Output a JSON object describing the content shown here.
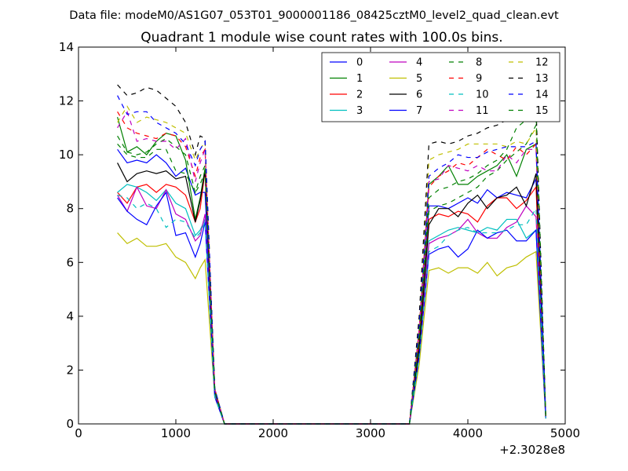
{
  "chart_data": {
    "type": "line",
    "suptitle": "Data file: modeM0/AS1G07_053T01_9000001186_08425cztM0_level2_quad_clean.evt",
    "title": "Quadrant 1 module wise count rates with 100.0s bins.",
    "xlabel": "",
    "ylabel": "",
    "x_offset_label": "+2.3028e8",
    "xlim": [
      0,
      5000
    ],
    "ylim": [
      0,
      14
    ],
    "xticks": [
      0,
      1000,
      2000,
      3000,
      4000,
      5000
    ],
    "yticks": [
      0,
      2,
      4,
      6,
      8,
      10,
      12,
      14
    ],
    "grid": false,
    "legend_position": "top-right",
    "legend_columns": 4,
    "x": [
      400,
      500,
      600,
      700,
      800,
      900,
      1000,
      1100,
      1200,
      1250,
      1300,
      1400,
      1500,
      1600,
      1700,
      1800,
      1900,
      2000,
      2100,
      2200,
      2300,
      2400,
      2500,
      2600,
      2700,
      2800,
      2900,
      3000,
      3100,
      3200,
      3300,
      3400,
      3500,
      3600,
      3700,
      3800,
      3900,
      4000,
      4100,
      4200,
      4300,
      4400,
      4500,
      4600,
      4700,
      4800
    ],
    "series": [
      {
        "name": "0",
        "color": "#0000ff",
        "dash": "solid",
        "values": [
          10.2,
          9.7,
          9.8,
          9.7,
          10.0,
          9.7,
          9.2,
          9.5,
          8.5,
          8.6,
          8.6,
          1.2,
          0,
          0,
          0,
          0,
          0,
          0,
          0,
          0,
          0,
          0,
          0,
          0,
          0,
          0,
          0,
          0,
          0,
          0,
          0,
          0,
          3.0,
          8.1,
          8.1,
          8.0,
          8.2,
          8.4,
          8.2,
          8.7,
          8.4,
          8.6,
          8.5,
          8.4,
          9.1,
          0.3
        ]
      },
      {
        "name": "1",
        "color": "#008000",
        "dash": "solid",
        "values": [
          11.4,
          10.1,
          10.3,
          10.0,
          10.5,
          10.8,
          10.7,
          9.8,
          7.6,
          8.4,
          9.5,
          1.3,
          0,
          0,
          0,
          0,
          0,
          0,
          0,
          0,
          0,
          0,
          0,
          0,
          0,
          0,
          0,
          0,
          0,
          0,
          0,
          0,
          3.5,
          8.9,
          9.2,
          9.6,
          8.9,
          8.9,
          9.2,
          9.4,
          9.6,
          10.0,
          9.2,
          10.2,
          10.4,
          0.3
        ]
      },
      {
        "name": "2",
        "color": "#ff0000",
        "dash": "solid",
        "values": [
          8.6,
          8.2,
          8.8,
          8.9,
          8.6,
          8.9,
          8.8,
          8.5,
          7.5,
          8.0,
          9.4,
          1.2,
          0,
          0,
          0,
          0,
          0,
          0,
          0,
          0,
          0,
          0,
          0,
          0,
          0,
          0,
          0,
          0,
          0,
          0,
          0,
          0,
          3.0,
          7.6,
          7.8,
          7.7,
          7.9,
          7.8,
          7.5,
          8.1,
          8.4,
          8.4,
          8.0,
          8.3,
          8.8,
          0.3
        ]
      },
      {
        "name": "3",
        "color": "#00bfbf",
        "dash": "solid",
        "values": [
          8.6,
          8.9,
          8.8,
          8.6,
          8.3,
          8.7,
          8.2,
          8.0,
          7.0,
          7.2,
          7.6,
          1.1,
          0,
          0,
          0,
          0,
          0,
          0,
          0,
          0,
          0,
          0,
          0,
          0,
          0,
          0,
          0,
          0,
          0,
          0,
          0,
          0,
          2.6,
          6.8,
          7.0,
          7.2,
          7.3,
          7.2,
          7.1,
          7.3,
          7.2,
          7.6,
          7.6,
          6.9,
          7.2,
          0.3
        ]
      },
      {
        "name": "4",
        "color": "#bf00bf",
        "dash": "solid",
        "values": [
          8.5,
          7.9,
          8.8,
          8.1,
          8.0,
          8.7,
          7.8,
          7.6,
          6.8,
          7.0,
          7.8,
          1.1,
          0,
          0,
          0,
          0,
          0,
          0,
          0,
          0,
          0,
          0,
          0,
          0,
          0,
          0,
          0,
          0,
          0,
          0,
          0,
          0,
          2.6,
          6.7,
          6.9,
          7.0,
          7.2,
          7.6,
          7.1,
          6.9,
          6.9,
          7.3,
          7.5,
          8.1,
          7.7,
          0.3
        ]
      },
      {
        "name": "5",
        "color": "#bfbf00",
        "dash": "solid",
        "values": [
          7.1,
          6.7,
          6.9,
          6.6,
          6.6,
          6.7,
          6.2,
          6.0,
          5.4,
          5.8,
          6.1,
          1.0,
          0,
          0,
          0,
          0,
          0,
          0,
          0,
          0,
          0,
          0,
          0,
          0,
          0,
          0,
          0,
          0,
          0,
          0,
          0,
          0,
          2.2,
          5.7,
          5.8,
          5.6,
          5.8,
          5.8,
          5.6,
          6.0,
          5.5,
          5.8,
          5.9,
          6.2,
          6.4,
          0.2
        ]
      },
      {
        "name": "6",
        "color": "#000000",
        "dash": "solid",
        "values": [
          9.7,
          9.0,
          9.3,
          9.4,
          9.3,
          9.4,
          9.1,
          9.2,
          7.5,
          8.3,
          9.4,
          1.2,
          0,
          0,
          0,
          0,
          0,
          0,
          0,
          0,
          0,
          0,
          0,
          0,
          0,
          0,
          0,
          0,
          0,
          0,
          0,
          0,
          2.8,
          7.4,
          8.0,
          8.0,
          7.7,
          8.2,
          8.5,
          8.0,
          8.4,
          8.5,
          8.8,
          8.1,
          9.3,
          0.3
        ]
      },
      {
        "name": "7",
        "color": "#0000ff",
        "dash": "solid",
        "values": [
          8.4,
          7.9,
          7.6,
          7.4,
          8.1,
          8.6,
          7.0,
          7.1,
          6.2,
          6.7,
          7.5,
          1.0,
          0,
          0,
          0,
          0,
          0,
          0,
          0,
          0,
          0,
          0,
          0,
          0,
          0,
          0,
          0,
          0,
          0,
          0,
          0,
          0,
          2.5,
          6.3,
          6.5,
          6.6,
          6.2,
          6.5,
          7.2,
          6.9,
          7.1,
          7.2,
          6.8,
          6.8,
          7.2,
          0.2
        ]
      },
      {
        "name": "8",
        "color": "#008000",
        "dash": "dashed",
        "values": [
          10.7,
          10.1,
          10.0,
          10.1,
          10.4,
          10.6,
          10.3,
          10.0,
          8.6,
          9.2,
          9.6,
          1.3,
          0,
          0,
          0,
          0,
          0,
          0,
          0,
          0,
          0,
          0,
          0,
          0,
          0,
          0,
          0,
          0,
          0,
          0,
          0,
          0,
          3.2,
          7.9,
          8.1,
          8.2,
          8.4,
          8.6,
          8.8,
          9.2,
          9.4,
          9.8,
          10.1,
          10.4,
          11.1,
          0.3
        ]
      },
      {
        "name": "9",
        "color": "#ff0000",
        "dash": "dashed",
        "values": [
          11.6,
          11.0,
          10.8,
          10.7,
          10.6,
          10.8,
          10.7,
          10.3,
          9.2,
          9.9,
          10.2,
          1.3,
          0,
          0,
          0,
          0,
          0,
          0,
          0,
          0,
          0,
          0,
          0,
          0,
          0,
          0,
          0,
          0,
          0,
          0,
          0,
          0,
          3.5,
          8.8,
          9.2,
          9.4,
          9.7,
          9.6,
          9.9,
          10.2,
          10.0,
          9.8,
          10.3,
          10.0,
          10.4,
          0.3
        ]
      },
      {
        "name": "10",
        "color": "#00bfbf",
        "dash": "dashed",
        "values": [
          8.5,
          8.4,
          8.0,
          8.2,
          8.0,
          7.3,
          7.6,
          7.5,
          6.9,
          7.1,
          7.5,
          1.0,
          0,
          0,
          0,
          0,
          0,
          0,
          0,
          0,
          0,
          0,
          0,
          0,
          0,
          0,
          0,
          0,
          0,
          0,
          0,
          0,
          2.5,
          6.4,
          6.6,
          7.0,
          7.2,
          7.3,
          7.1,
          7.1,
          7.1,
          7.2,
          7.4,
          7.4,
          8.0,
          0.2
        ]
      },
      {
        "name": "11",
        "color": "#bf00bf",
        "dash": "dashed",
        "values": [
          11.0,
          11.6,
          10.5,
          10.6,
          10.5,
          10.5,
          10.2,
          10.6,
          9.0,
          9.7,
          10.2,
          1.3,
          0,
          0,
          0,
          0,
          0,
          0,
          0,
          0,
          0,
          0,
          0,
          0,
          0,
          0,
          0,
          0,
          0,
          0,
          0,
          0,
          3.5,
          9.0,
          9.1,
          9.6,
          9.5,
          9.4,
          9.6,
          9.4,
          9.4,
          10.0,
          9.7,
          10.2,
          10.2,
          0.3
        ]
      },
      {
        "name": "12",
        "color": "#bfbf00",
        "dash": "dashed",
        "values": [
          11.2,
          11.8,
          11.2,
          11.4,
          11.3,
          11.2,
          11.0,
          10.8,
          9.8,
          10.2,
          10.5,
          1.3,
          0,
          0,
          0,
          0,
          0,
          0,
          0,
          0,
          0,
          0,
          0,
          0,
          0,
          0,
          0,
          0,
          0,
          0,
          0,
          0,
          3.7,
          9.8,
          10.0,
          10.1,
          10.2,
          10.4,
          10.4,
          10.4,
          10.4,
          10.3,
          10.5,
          10.4,
          11.0,
          0.3
        ]
      },
      {
        "name": "13",
        "color": "#000000",
        "dash": "dashed",
        "values": [
          12.6,
          12.2,
          12.3,
          12.5,
          12.4,
          12.1,
          11.8,
          11.2,
          10.0,
          10.7,
          10.6,
          1.3,
          0,
          0,
          0,
          0,
          0,
          0,
          0,
          0,
          0,
          0,
          0,
          0,
          0,
          0,
          0,
          0,
          0,
          0,
          0,
          0,
          4.0,
          10.4,
          10.5,
          10.4,
          10.5,
          10.7,
          10.8,
          11.0,
          11.1,
          11.3,
          11.6,
          11.7,
          11.9,
          0.3
        ]
      },
      {
        "name": "14",
        "color": "#0000ff",
        "dash": "dashed",
        "values": [
          12.2,
          11.5,
          11.6,
          11.6,
          11.2,
          11.0,
          10.8,
          10.4,
          9.6,
          10.2,
          10.5,
          1.3,
          0,
          0,
          0,
          0,
          0,
          0,
          0,
          0,
          0,
          0,
          0,
          0,
          0,
          0,
          0,
          0,
          0,
          0,
          0,
          0,
          3.6,
          9.2,
          9.5,
          9.7,
          10.0,
          9.9,
          9.9,
          10.1,
          10.2,
          10.3,
          10.3,
          10.3,
          10.5,
          0.3
        ]
      },
      {
        "name": "15",
        "color": "#008000",
        "dash": "dashed",
        "values": [
          10.4,
          10.0,
          9.9,
          9.9,
          10.2,
          10.2,
          9.4,
          9.3,
          8.6,
          8.9,
          9.4,
          1.2,
          0,
          0,
          0,
          0,
          0,
          0,
          0,
          0,
          0,
          0,
          0,
          0,
          0,
          0,
          0,
          0,
          0,
          0,
          0,
          0,
          3.3,
          8.4,
          8.7,
          8.8,
          9.0,
          9.1,
          9.3,
          9.6,
          9.8,
          10.2,
          11.0,
          11.3,
          11.6,
          0.3
        ]
      }
    ]
  }
}
